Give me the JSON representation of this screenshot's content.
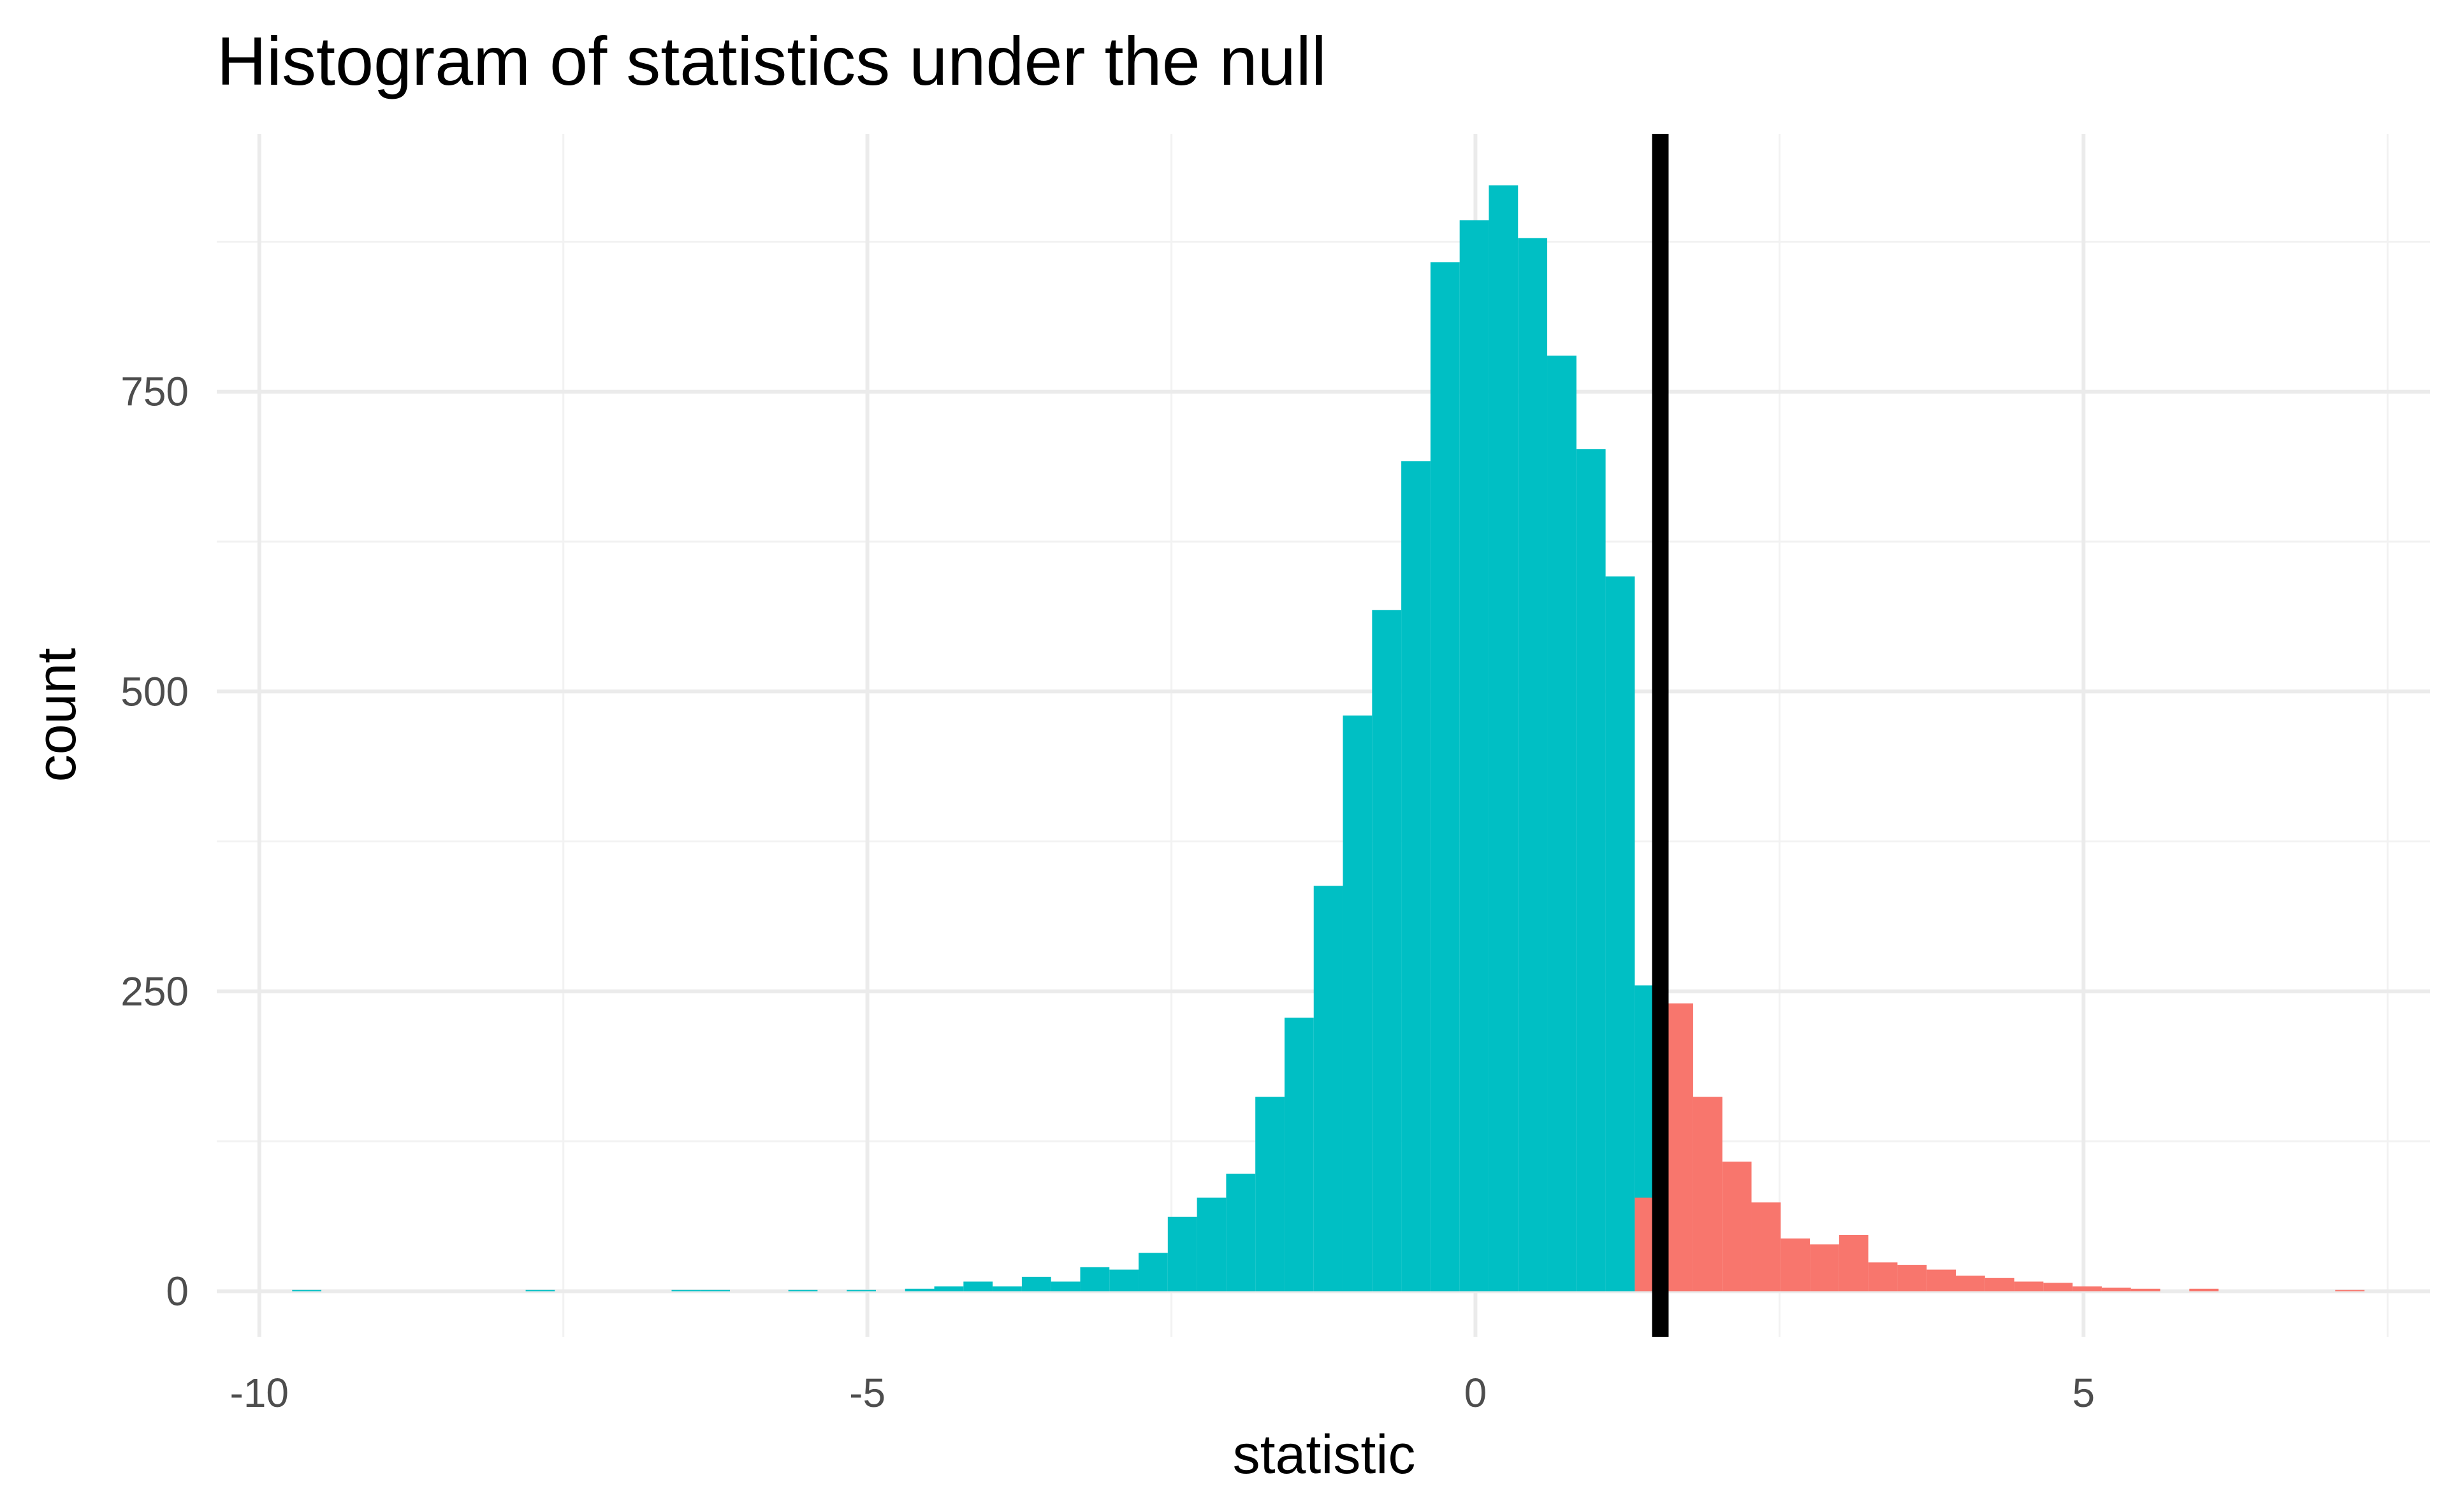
{
  "chart_data": {
    "type": "bar",
    "title": "Histogram of statistics under the null",
    "xlabel": "statistic",
    "ylabel": "count",
    "xlim": [
      -10.35,
      7.85
    ],
    "ylim": [
      -38,
      965
    ],
    "x_ticks": [
      -10,
      -5,
      0,
      5
    ],
    "x_tick_labels": [
      "-10",
      "-5",
      "0",
      "5"
    ],
    "y_ticks": [
      0,
      250,
      500,
      750
    ],
    "y_tick_labels": [
      "0",
      "250",
      "500",
      "750"
    ],
    "grid": true,
    "legend": "none",
    "observed_statistic": 1.52,
    "bin_width": 0.24,
    "colors": {
      "below": "#00BFC4",
      "above": "#F8766D",
      "line": "#000000",
      "grid_major": "#EBEBEB",
      "grid_minor": "#F2F2F2"
    },
    "series": [
      {
        "x": [
          -9.61,
          -7.69,
          -6.49,
          -6.25,
          -5.53,
          -5.05,
          -4.57,
          -4.33,
          -4.09,
          -3.85,
          -3.61,
          -3.37,
          -3.13,
          -2.89,
          -2.65,
          -2.41,
          -2.17,
          -1.93,
          -1.69,
          -1.45,
          -1.21,
          -0.97,
          -0.73,
          -0.49,
          -0.25,
          -0.01,
          0.23,
          0.47,
          0.71,
          0.95,
          1.19,
          1.43
        ],
        "values": [
          1,
          1,
          1,
          1,
          1,
          1,
          2,
          4,
          8,
          4,
          12,
          8,
          20,
          18,
          32,
          62,
          78,
          98,
          162,
          228,
          338,
          480,
          568,
          692,
          858,
          893,
          922,
          878,
          780,
          702,
          596,
          255
        ]
      },
      {
        "x": [
          1.43,
          1.67,
          1.91,
          2.15,
          2.39,
          2.63,
          2.87,
          3.11,
          3.35,
          3.59,
          3.83,
          4.07,
          4.31,
          4.55,
          4.79,
          5.03,
          5.27,
          5.51,
          5.99,
          7.19
        ],
        "values": [
          78,
          240,
          162,
          108,
          74,
          44,
          39,
          47,
          24,
          22,
          18,
          13,
          11,
          8,
          7,
          4,
          3,
          2,
          2,
          1
        ]
      }
    ]
  }
}
